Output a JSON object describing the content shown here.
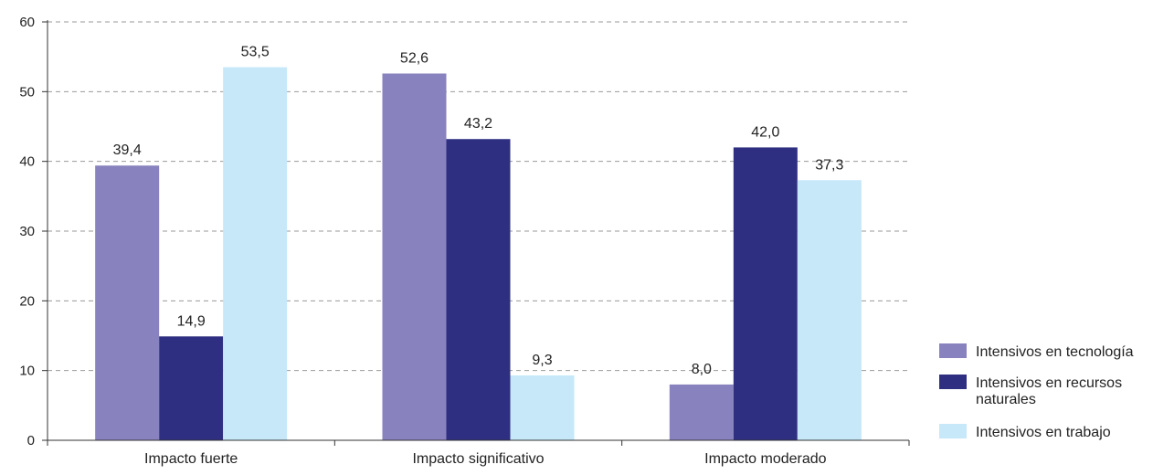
{
  "chart_data": {
    "type": "bar",
    "categories": [
      "Impacto fuerte",
      "Impacto significativo",
      "Impacto moderado"
    ],
    "series": [
      {
        "name": "Intensivos en tecnología",
        "color": "#8882be",
        "values": [
          39.4,
          52.6,
          8.0
        ],
        "labels": [
          "39,4",
          "52,6",
          "8,0"
        ]
      },
      {
        "name": "Intensivos en recursos naturales",
        "name_lines": [
          "Intensivos en recursos",
          "naturales"
        ],
        "color": "#2f2f82",
        "values": [
          14.9,
          43.2,
          42.0
        ],
        "labels": [
          "14,9",
          "43,2",
          "42,0"
        ]
      },
      {
        "name": "Intensivos en trabajo",
        "color": "#c6e8f8",
        "values": [
          53.5,
          9.3,
          37.3
        ],
        "labels": [
          "53,5",
          "9,3",
          "37,3"
        ]
      }
    ],
    "ylim": [
      0,
      60
    ],
    "yticks": [
      0,
      10,
      20,
      30,
      40,
      50,
      60
    ],
    "grid": true,
    "legend": "right",
    "title": "",
    "xlabel": "",
    "ylabel": ""
  }
}
